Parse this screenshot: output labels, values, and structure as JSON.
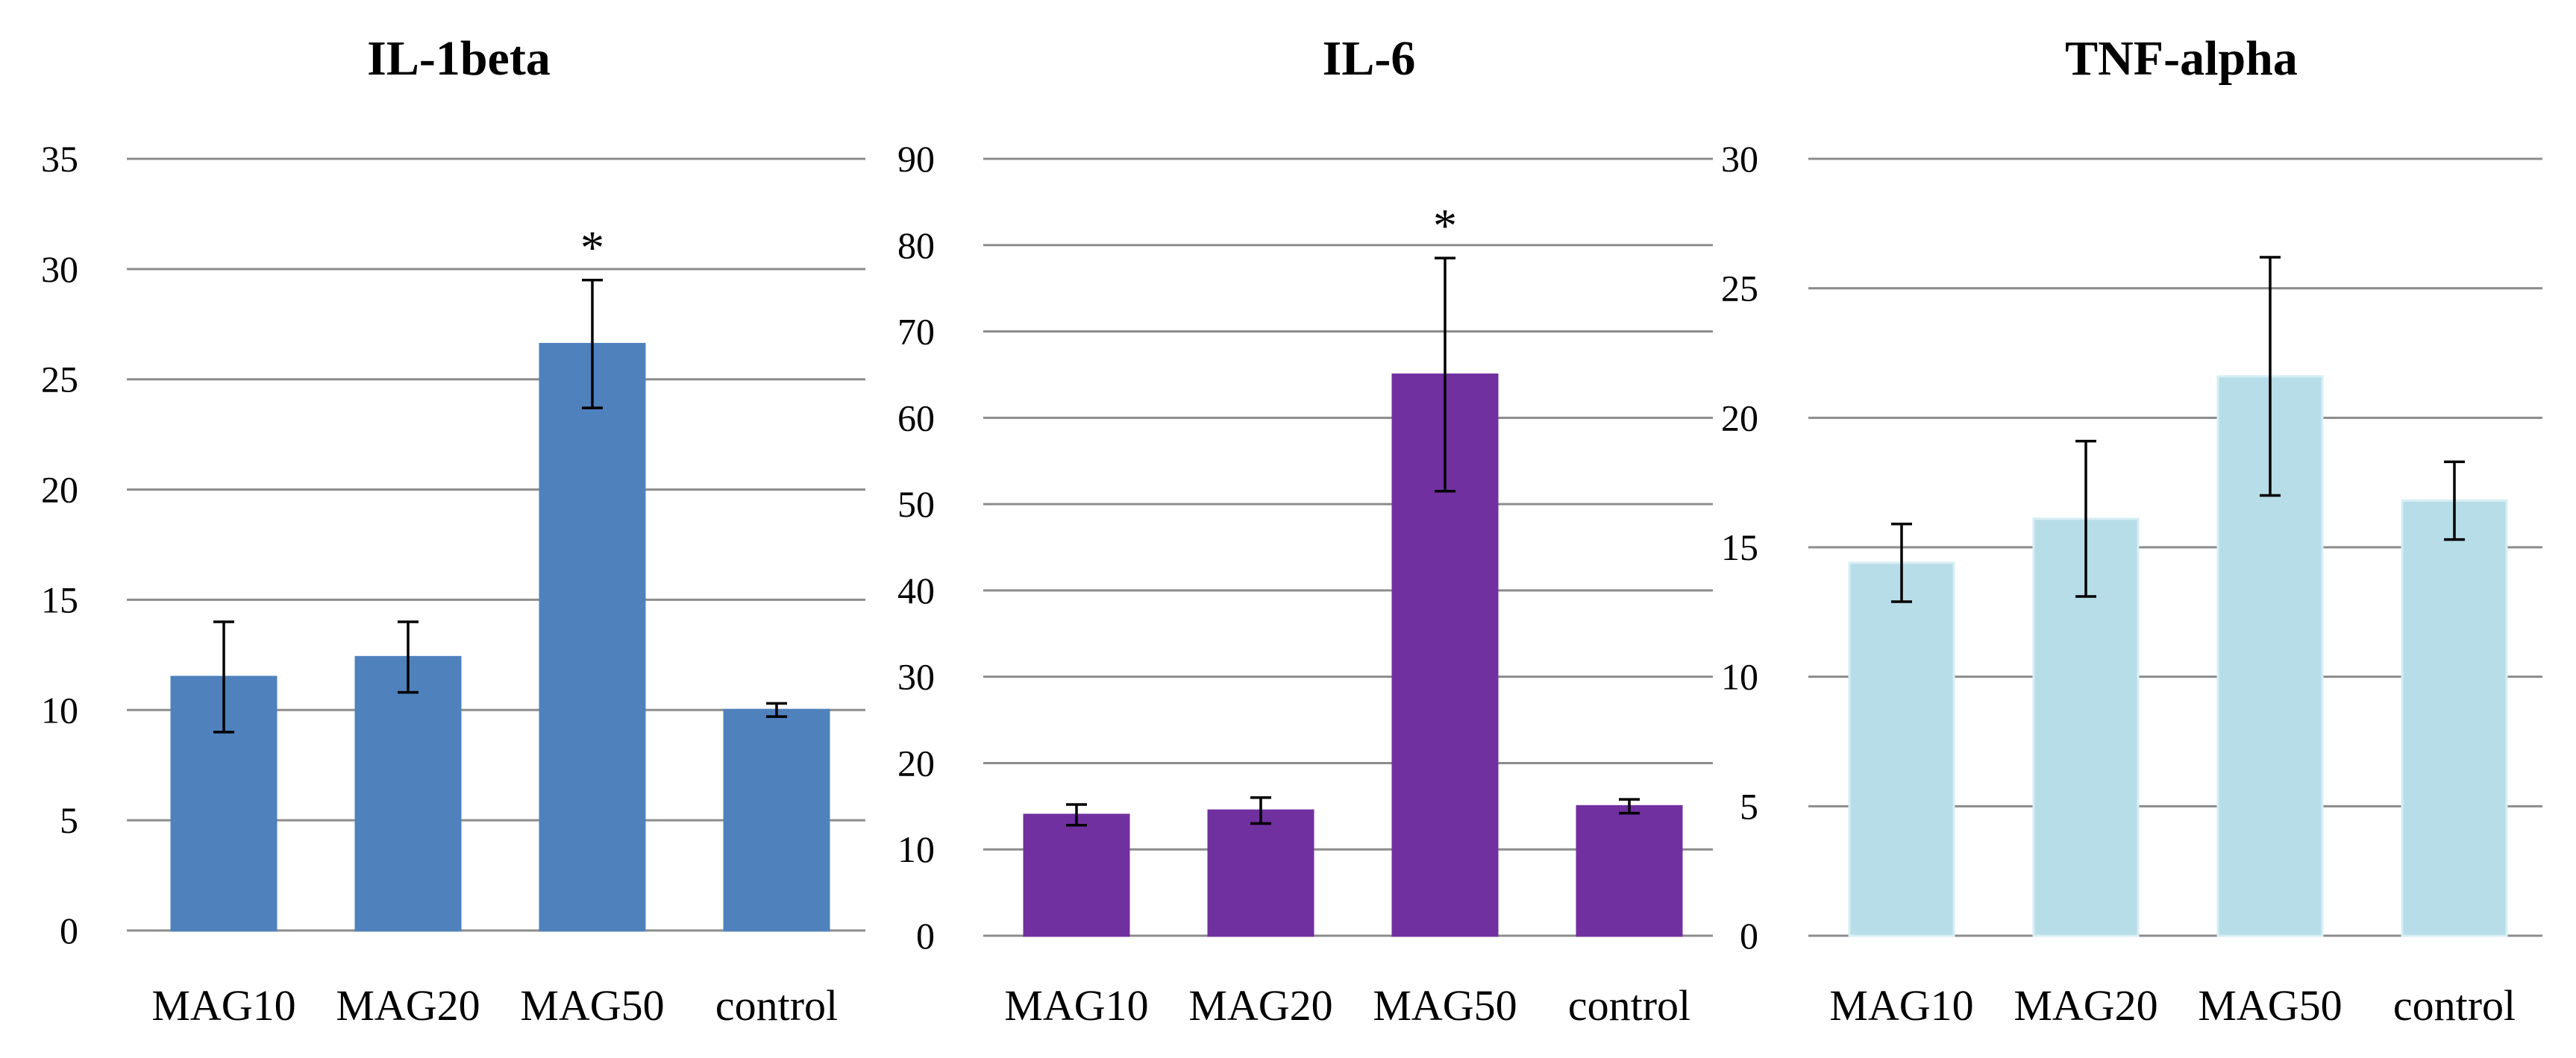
{
  "chart_data": [
    {
      "type": "bar",
      "title": "IL-1beta",
      "categories": [
        "MAG10",
        "MAG20",
        "MAG50",
        "control"
      ],
      "values": [
        11.5,
        12.4,
        26.6,
        10.0
      ],
      "errors": [
        2.5,
        1.6,
        2.9,
        0.3
      ],
      "significance": [
        "",
        "",
        "*",
        ""
      ],
      "ylim": [
        0,
        35
      ],
      "yticks": [
        0,
        5,
        10,
        15,
        20,
        25,
        30,
        35
      ],
      "color": "#4f81bd",
      "bar_border": "#4f81bd"
    },
    {
      "type": "bar",
      "title": "IL-6",
      "categories": [
        "MAG10",
        "MAG20",
        "MAG50",
        "control"
      ],
      "values": [
        14.0,
        14.5,
        65.0,
        15.0
      ],
      "errors": [
        1.2,
        1.5,
        13.5,
        0.8
      ],
      "significance": [
        "",
        "",
        "*",
        ""
      ],
      "ylim": [
        0,
        90
      ],
      "yticks": [
        0,
        10,
        20,
        30,
        40,
        50,
        60,
        70,
        80,
        90
      ],
      "color": "#7030a0",
      "bar_border": "#7030a0"
    },
    {
      "type": "bar",
      "title": "TNF-alpha",
      "categories": [
        "MAG10",
        "MAG20",
        "MAG50",
        "control"
      ],
      "values": [
        14.4,
        16.1,
        21.6,
        16.8
      ],
      "errors": [
        1.5,
        3.0,
        4.6,
        1.5
      ],
      "significance": [
        "",
        "",
        "",
        ""
      ],
      "ylim": [
        0,
        30
      ],
      "yticks": [
        0,
        5,
        10,
        15,
        20,
        25,
        30
      ],
      "color": "#b7dde8",
      "bar_border": "#d6eef5"
    }
  ]
}
